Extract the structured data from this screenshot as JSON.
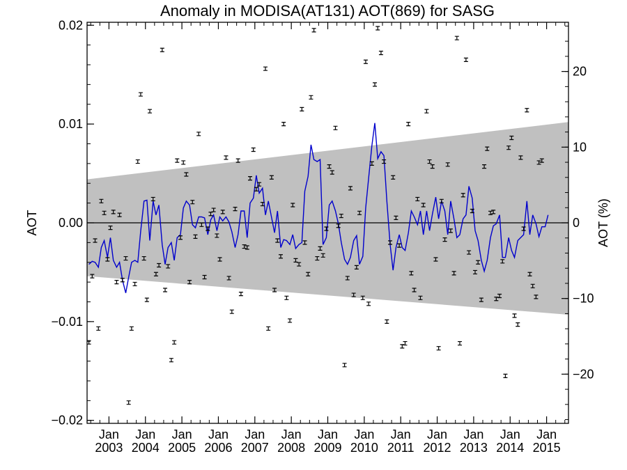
{
  "chart_data": {
    "type": "scatter",
    "title": "Anomaly in MODISA(AT131) AOT(869) for SASG",
    "ylabel": "AOT",
    "y2label": "AOT (%)",
    "xlim": [
      2002.4,
      2015.6
    ],
    "ylim": [
      -0.0203,
      0.0203
    ],
    "y2lim": [
      -26.5,
      26.5
    ],
    "x_month_label": "Jan",
    "x_ticks": [
      {
        "x": 2003.0,
        "label": "2003"
      },
      {
        "x": 2004.0,
        "label": "2004"
      },
      {
        "x": 2005.0,
        "label": "2005"
      },
      {
        "x": 2006.0,
        "label": "2006"
      },
      {
        "x": 2007.0,
        "label": "2007"
      },
      {
        "x": 2008.0,
        "label": "2008"
      },
      {
        "x": 2009.0,
        "label": "2009"
      },
      {
        "x": 2010.0,
        "label": "2010"
      },
      {
        "x": 2011.0,
        "label": "2011"
      },
      {
        "x": 2012.0,
        "label": "2012"
      },
      {
        "x": 2013.0,
        "label": "2013"
      },
      {
        "x": 2014.0,
        "label": "2014"
      },
      {
        "x": 2015.0,
        "label": "2015"
      }
    ],
    "y_ticks": [
      {
        "y": -0.02,
        "label": "−0.02"
      },
      {
        "y": -0.01,
        "label": "−0.01"
      },
      {
        "y": 0.0,
        "label": "0.00"
      },
      {
        "y": 0.01,
        "label": "0.01"
      },
      {
        "y": 0.02,
        "label": "0.02"
      }
    ],
    "y2_ticks": [
      {
        "y": -20,
        "label": "−20"
      },
      {
        "y": -10,
        "label": "−10"
      },
      {
        "y": 0,
        "label": "0"
      },
      {
        "y": 10,
        "label": "10"
      },
      {
        "y": 20,
        "label": "20"
      }
    ],
    "band": {
      "x": [
        2002.4,
        2015.6
      ],
      "upper": [
        0.0044,
        0.0102
      ],
      "lower": [
        -0.0054,
        -0.0093
      ]
    },
    "zero_line": 0.0,
    "band_color": "#c0c0c0",
    "line_color": "#0000cc",
    "points_color": "#000000",
    "points_x": [
      2002.45,
      2002.54,
      2002.62,
      2002.71,
      2002.79,
      2002.87,
      2002.96,
      2003.04,
      2003.12,
      2003.21,
      2003.29,
      2003.37,
      2003.46,
      2003.54,
      2003.62,
      2003.71,
      2003.79,
      2003.87,
      2003.96,
      2004.04,
      2004.12,
      2004.21,
      2004.29,
      2004.37,
      2004.46,
      2004.54,
      2004.62,
      2004.71,
      2004.79,
      2004.87,
      2004.96,
      2005.04,
      2005.12,
      2005.21,
      2005.29,
      2005.37,
      2005.46,
      2005.54,
      2005.62,
      2005.71,
      2005.79,
      2005.87,
      2005.96,
      2006.04,
      2006.12,
      2006.21,
      2006.29,
      2006.37,
      2006.46,
      2006.54,
      2006.62,
      2006.71,
      2006.79,
      2006.87,
      2006.96,
      2007.04,
      2007.12,
      2007.21,
      2007.29,
      2007.37,
      2007.46,
      2007.54,
      2007.62,
      2007.71,
      2007.79,
      2007.87,
      2007.96,
      2008.04,
      2008.12,
      2008.21,
      2008.29,
      2008.37,
      2008.46,
      2008.54,
      2008.62,
      2008.71,
      2008.79,
      2008.87,
      2008.96,
      2009.04,
      2009.12,
      2009.21,
      2009.29,
      2009.37,
      2009.46,
      2009.54,
      2009.62,
      2009.71,
      2009.79,
      2009.87,
      2009.96,
      2010.04,
      2010.12,
      2010.21,
      2010.29,
      2010.37,
      2010.46,
      2010.54,
      2010.62,
      2010.71,
      2010.79,
      2010.87,
      2010.96,
      2011.04,
      2011.12,
      2011.21,
      2011.29,
      2011.37,
      2011.46,
      2011.54,
      2011.62,
      2011.71,
      2011.79,
      2011.87,
      2011.96,
      2012.04,
      2012.12,
      2012.21,
      2012.29,
      2012.37,
      2012.46,
      2012.54,
      2012.62,
      2012.71,
      2012.79,
      2012.87,
      2012.96,
      2013.04,
      2013.12,
      2013.21,
      2013.29,
      2013.37,
      2013.46,
      2013.54,
      2013.62,
      2013.71,
      2013.79,
      2013.87,
      2013.96,
      2014.04,
      2014.12,
      2014.21,
      2014.29,
      2014.37,
      2014.46,
      2014.54,
      2014.62,
      2014.71,
      2014.79,
      2014.87,
      2014.96,
      2015.04,
      2015.12,
      2015.21,
      2015.29,
      2015.37,
      2015.46,
      2015.54
    ],
    "points_y": [
      -0.0121,
      -0.0054,
      -0.0018,
      -0.0107,
      0.0022,
      0.001,
      -0.0037,
      -0.0005,
      0.0011,
      -0.006,
      0.0008,
      -0.0058,
      -0.0036,
      -0.0182,
      -0.0107,
      -0.0062,
      0.0062,
      0.013,
      -0.0036,
      -0.0078,
      0.0113,
      0.0024,
      -0.0052,
      -0.0043,
      0.0175,
      -0.0068,
      -0.0044,
      -0.0139,
      -0.0121,
      0.0063,
      -0.0015,
      0.0061,
      0.0049,
      -0.006,
      0.0021,
      -0.0014,
      0.009,
      -0.0002,
      -0.0055,
      -0.0006,
      0.0009,
      0.0013,
      -0.0013,
      -0.0037,
      0.0011,
      0.0066,
      -0.0056,
      -0.009,
      0.0014,
      0.0063,
      -0.0072,
      -0.0024,
      -0.0025,
      0.0045,
      0.0074,
      0.0034,
      0.0039,
      0.0019,
      0.0156,
      -0.0107,
      0.0046,
      -0.0068,
      -0.0018,
      -0.0034,
      0.01,
      -0.0076,
      -0.0099,
      0.0018,
      -0.0038,
      -0.0042,
      0.0115,
      -0.002,
      -0.0052,
      0.0127,
      0.0195,
      -0.0036,
      -0.0026,
      -0.0033,
      -0.0006,
      0.0057,
      0.0051,
      0.0096,
      -0.0003,
      0.0007,
      -0.0144,
      -0.0056,
      0.0035,
      -0.0073,
      -0.0045,
      0.001,
      -0.0076,
      0.0163,
      -0.0082,
      0.006,
      0.014,
      0.0197,
      0.0172,
      0.0062,
      -0.01,
      -0.002,
      0.0046,
      0.0005,
      -0.0023,
      -0.0125,
      -0.0122,
      0.01,
      -0.0051,
      -0.0068,
      0.0024,
      -0.0076,
      0.0018,
      0.0113,
      0.0062,
      0.0057,
      -0.0037,
      -0.0127,
      0.0022,
      -0.0017,
      0.0059,
      -0.0008,
      -0.0051,
      0.0187,
      -0.0122,
      0.0028,
      0.0165,
      -0.003,
      0.0012,
      -0.005,
      -0.004,
      -0.0078,
      0.0057,
      0.0075,
      0.001,
      0.0011,
      -0.0077,
      -0.0074,
      -0.0039,
      -0.0155,
      0.0076,
      0.0086,
      -0.0094,
      -0.0103,
      0.0066,
      -0.0006,
      0.0114,
      -0.0052,
      -0.0064,
      -0.0075,
      0.0061,
      0.0063
    ],
    "line_x": [
      2002.45,
      2002.54,
      2002.62,
      2002.71,
      2002.79,
      2002.87,
      2002.96,
      2003.04,
      2003.12,
      2003.21,
      2003.29,
      2003.37,
      2003.46,
      2003.54,
      2003.62,
      2003.71,
      2003.79,
      2003.87,
      2003.96,
      2004.04,
      2004.12,
      2004.21,
      2004.29,
      2004.37,
      2004.46,
      2004.54,
      2004.62,
      2004.71,
      2004.79,
      2004.87,
      2004.96,
      2005.04,
      2005.12,
      2005.21,
      2005.29,
      2005.37,
      2005.46,
      2005.54,
      2005.62,
      2005.71,
      2005.79,
      2005.87,
      2005.96,
      2006.04,
      2006.12,
      2006.21,
      2006.29,
      2006.37,
      2006.46,
      2006.54,
      2006.62,
      2006.71,
      2006.79,
      2006.87,
      2006.96,
      2007.04,
      2007.12,
      2007.21,
      2007.29,
      2007.37,
      2007.46,
      2007.54,
      2007.62,
      2007.71,
      2007.79,
      2007.87,
      2007.96,
      2008.04,
      2008.12,
      2008.21,
      2008.29,
      2008.37,
      2008.46,
      2008.54,
      2008.62,
      2008.71,
      2008.79,
      2008.87,
      2008.96,
      2009.04,
      2009.12,
      2009.21,
      2009.29,
      2009.37,
      2009.46,
      2009.54,
      2009.62,
      2009.71,
      2009.79,
      2009.87,
      2009.96,
      2010.04,
      2010.12,
      2010.21,
      2010.29,
      2010.37,
      2010.46,
      2010.54,
      2010.62,
      2010.71,
      2010.79,
      2010.87,
      2010.96,
      2011.04,
      2011.12,
      2011.21,
      2011.29,
      2011.37,
      2011.46,
      2011.54,
      2011.62,
      2011.71,
      2011.79,
      2011.87,
      2011.96,
      2012.04,
      2012.12,
      2012.21,
      2012.29,
      2012.37,
      2012.46,
      2012.54,
      2012.62,
      2012.71,
      2012.79,
      2012.87,
      2012.96,
      2013.04,
      2013.12,
      2013.21,
      2013.29,
      2013.37,
      2013.46,
      2013.54,
      2013.62,
      2013.71,
      2013.79,
      2013.87,
      2013.96,
      2014.04,
      2014.12,
      2014.21,
      2014.29,
      2014.37,
      2014.46,
      2014.54,
      2014.62,
      2014.71,
      2014.79,
      2014.87,
      2014.96,
      2015.04,
      2015.12,
      2015.21,
      2015.29,
      2015.37,
      2015.46,
      2015.54
    ],
    "line_y": [
      -0.0042,
      -0.0039,
      -0.004,
      -0.0045,
      -0.0025,
      -0.0018,
      -0.0035,
      -0.0015,
      -0.0038,
      -0.0045,
      -0.004,
      -0.0058,
      -0.0071,
      -0.0055,
      -0.004,
      -0.0038,
      -0.004,
      -0.0008,
      0.0022,
      0.0023,
      -0.0018,
      0.0022,
      0.0008,
      0.0018,
      -0.0022,
      -0.0042,
      -0.0025,
      -0.002,
      -0.0038,
      -0.0015,
      -0.0012,
      0.0015,
      0.0022,
      0.0018,
      -0.0002,
      -0.0005,
      0.0006,
      0.0006,
      0.0005,
      -0.0012,
      0.0003,
      0.0008,
      -0.0008,
      0.0006,
      0.0002,
      0.0006,
      0.0001,
      -0.0009,
      -0.0025,
      -0.0012,
      0.0012,
      0.0012,
      -0.0015,
      0.002,
      0.0025,
      0.0048,
      0.003,
      0.0035,
      0.0008,
      0.0022,
      0.0005,
      -0.001,
      0.0012,
      -0.0025,
      -0.0017,
      -0.0018,
      -0.0022,
      -0.0012,
      -0.0026,
      -0.0022,
      -0.002,
      0.0032,
      0.0047,
      0.0079,
      0.0064,
      0.0062,
      0.0064,
      -0.0022,
      -0.0015,
      0.0018,
      0.0022,
      0.0012,
      -0.0001,
      -0.002,
      -0.0037,
      -0.0042,
      -0.0035,
      -0.0018,
      -0.0013,
      -0.0042,
      -0.0034,
      0.0015,
      0.0045,
      0.0078,
      0.0101,
      0.0065,
      0.0072,
      0.0068,
      0.0022,
      -0.0022,
      -0.0048,
      -0.0025,
      -0.0012,
      -0.0025,
      -0.0028,
      -0.001,
      0.0012,
      0.0006,
      -0.0002,
      0.0012,
      -0.0012,
      0.0012,
      -0.0008,
      0.0009,
      0.0026,
      0.0004,
      0.0022,
      0.0012,
      -0.0012,
      0.0022,
      0.0004,
      -0.0015,
      -0.0012,
      0.0004,
      0.0008,
      0.0037,
      0.0025,
      -0.0008,
      -0.0018,
      -0.0038,
      -0.0049,
      -0.0038,
      -0.0015,
      -0.0003,
      -0.0001,
      0.0008,
      -0.0035,
      -0.0035,
      -0.0015,
      -0.0028,
      -0.0035,
      -0.0018,
      -0.0015,
      -0.0012,
      0.0022,
      -0.0012,
      0.0008,
      -0.0001,
      -0.0014,
      -0.0004,
      -0.0004,
      0.0008
    ]
  }
}
